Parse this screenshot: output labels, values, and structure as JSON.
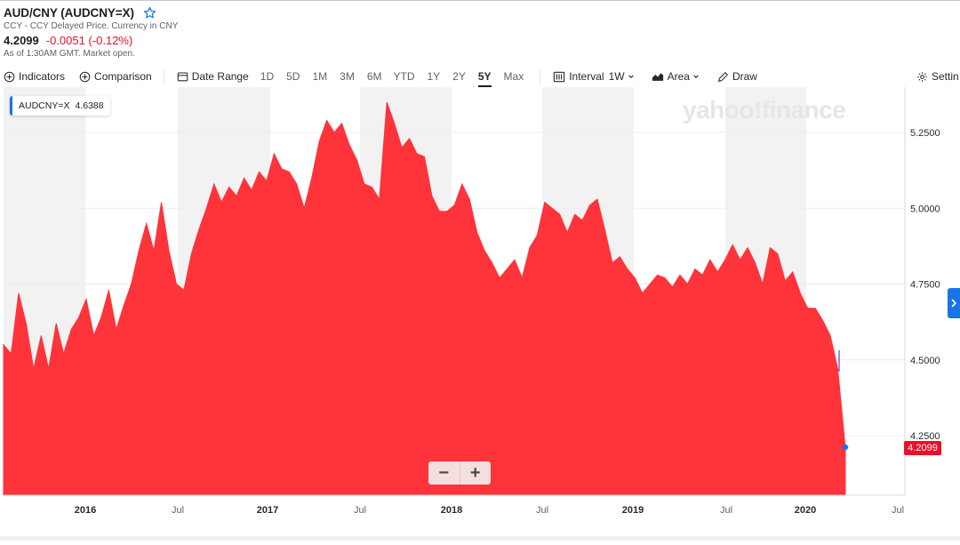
{
  "header": {
    "title": "AUD/CNY (AUDCNY=X)",
    "subtitle": "CCY - CCY Delayed Price. Currency in CNY",
    "price": "4.2099",
    "change": "-0.0051 (-0.12%)",
    "as_of": "As of 1:30AM GMT. Market open."
  },
  "toolbar": {
    "indicators": "Indicators",
    "comparison": "Comparison",
    "date_range": "Date Range",
    "ranges": [
      "1D",
      "5D",
      "1M",
      "3M",
      "6M",
      "YTD",
      "1Y",
      "2Y",
      "5Y",
      "Max"
    ],
    "active_range": "5Y",
    "interval_label": "Interval",
    "interval_value": "1W",
    "chart_type": "Area",
    "draw": "Draw",
    "settings": "Settin"
  },
  "legend": {
    "symbol": "AUDCNY=X",
    "value": "4.6388"
  },
  "watermark": "yahoo!finance",
  "zoom": {
    "minus": "−",
    "plus": "+"
  },
  "price_label": "4.2099",
  "colors": {
    "area": "#ff333a",
    "accent": "#1a73e8",
    "negative": "#eb0f29"
  },
  "icons": [
    "star-icon",
    "plus-circle-icon",
    "calendar-icon",
    "candle-icon",
    "area-chart-icon",
    "pencil-icon",
    "gear-icon",
    "chevron-right-icon"
  ],
  "chart_data": {
    "type": "area",
    "series": [
      {
        "values": [
          4.55,
          4.52,
          4.72,
          4.62,
          4.47,
          4.58,
          4.47,
          4.62,
          4.52,
          4.6,
          4.64,
          4.7,
          4.58,
          4.64,
          4.73,
          4.6,
          4.68,
          4.75,
          4.86,
          4.95,
          4.86,
          5.02,
          4.86,
          4.75,
          4.73,
          4.85,
          4.93,
          5.0,
          5.08,
          5.02,
          5.07,
          5.04,
          5.1,
          5.06,
          5.12,
          5.09,
          5.18,
          5.13,
          5.12,
          5.08,
          5.0,
          5.1,
          5.22,
          5.29,
          5.25,
          5.28,
          5.21,
          5.16,
          5.08,
          5.07,
          5.03,
          5.35,
          5.28,
          5.2,
          5.23,
          5.18,
          5.17,
          5.04,
          4.99,
          4.99,
          5.01,
          5.08,
          5.03,
          4.92,
          4.86,
          4.82,
          4.77,
          4.8,
          4.83,
          4.77,
          4.87,
          4.91,
          5.02,
          5.0,
          4.98,
          4.92,
          4.98,
          4.96,
          5.01,
          5.03,
          4.93,
          4.82,
          4.84,
          4.8,
          4.77,
          4.72,
          4.75,
          4.78,
          4.77,
          4.74,
          4.78,
          4.75,
          4.8,
          4.78,
          4.83,
          4.79,
          4.83,
          4.88,
          4.83,
          4.87,
          4.82,
          4.75,
          4.87,
          4.85,
          4.76,
          4.79,
          4.72,
          4.67,
          4.67,
          4.63,
          4.58,
          4.47,
          4.21
        ]
      }
    ],
    "x_labels": [
      "2016",
      "Jul",
      "2017",
      "Jul",
      "2018",
      "Jul",
      "2019",
      "Jul",
      "2020",
      "Jul"
    ],
    "y_ticks": [
      "5.2500",
      "5.0000",
      "4.7500",
      "4.5000",
      "4.2500"
    ],
    "ylim": [
      4.0,
      5.4
    ]
  }
}
